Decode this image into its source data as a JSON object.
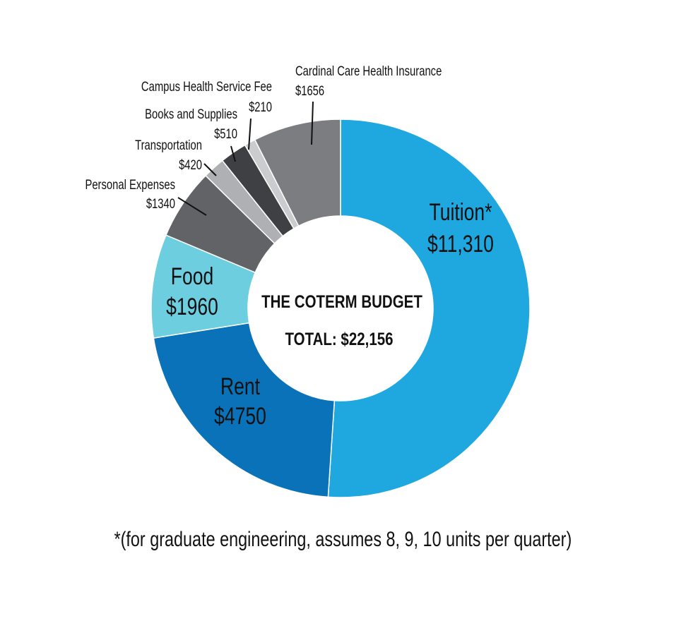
{
  "chart_data": {
    "type": "pie",
    "title": "THE COTERM BUDGET",
    "subtitle": "TOTAL: $22,156",
    "total": 22156,
    "slices": [
      {
        "name": "Tuition*",
        "value": 11310,
        "label": "$11,310",
        "color": "#1FA8E0"
      },
      {
        "name": "Rent",
        "value": 4750,
        "label": "$4750",
        "color": "#0A72B8"
      },
      {
        "name": "Food",
        "value": 1960,
        "label": "$1960",
        "color": "#6CCEDF"
      },
      {
        "name": "Personal Expenses",
        "value": 1340,
        "label": "$1340",
        "color": "#626366"
      },
      {
        "name": "Transportation",
        "value": 420,
        "label": "$420",
        "color": "#AFB0B3"
      },
      {
        "name": "Books and Supplies",
        "value": 510,
        "label": "$510",
        "color": "#3F4043"
      },
      {
        "name": "Campus Health Service Fee",
        "value": 210,
        "label": "$210",
        "color": "#CBCCCE"
      },
      {
        "name": "Cardinal Care Health Insurance",
        "value": 1656,
        "label": "$1656",
        "color": "#7C7D80"
      }
    ]
  },
  "footnote": "*(for graduate engineering, assumes 8, 9, 10 units per quarter)"
}
